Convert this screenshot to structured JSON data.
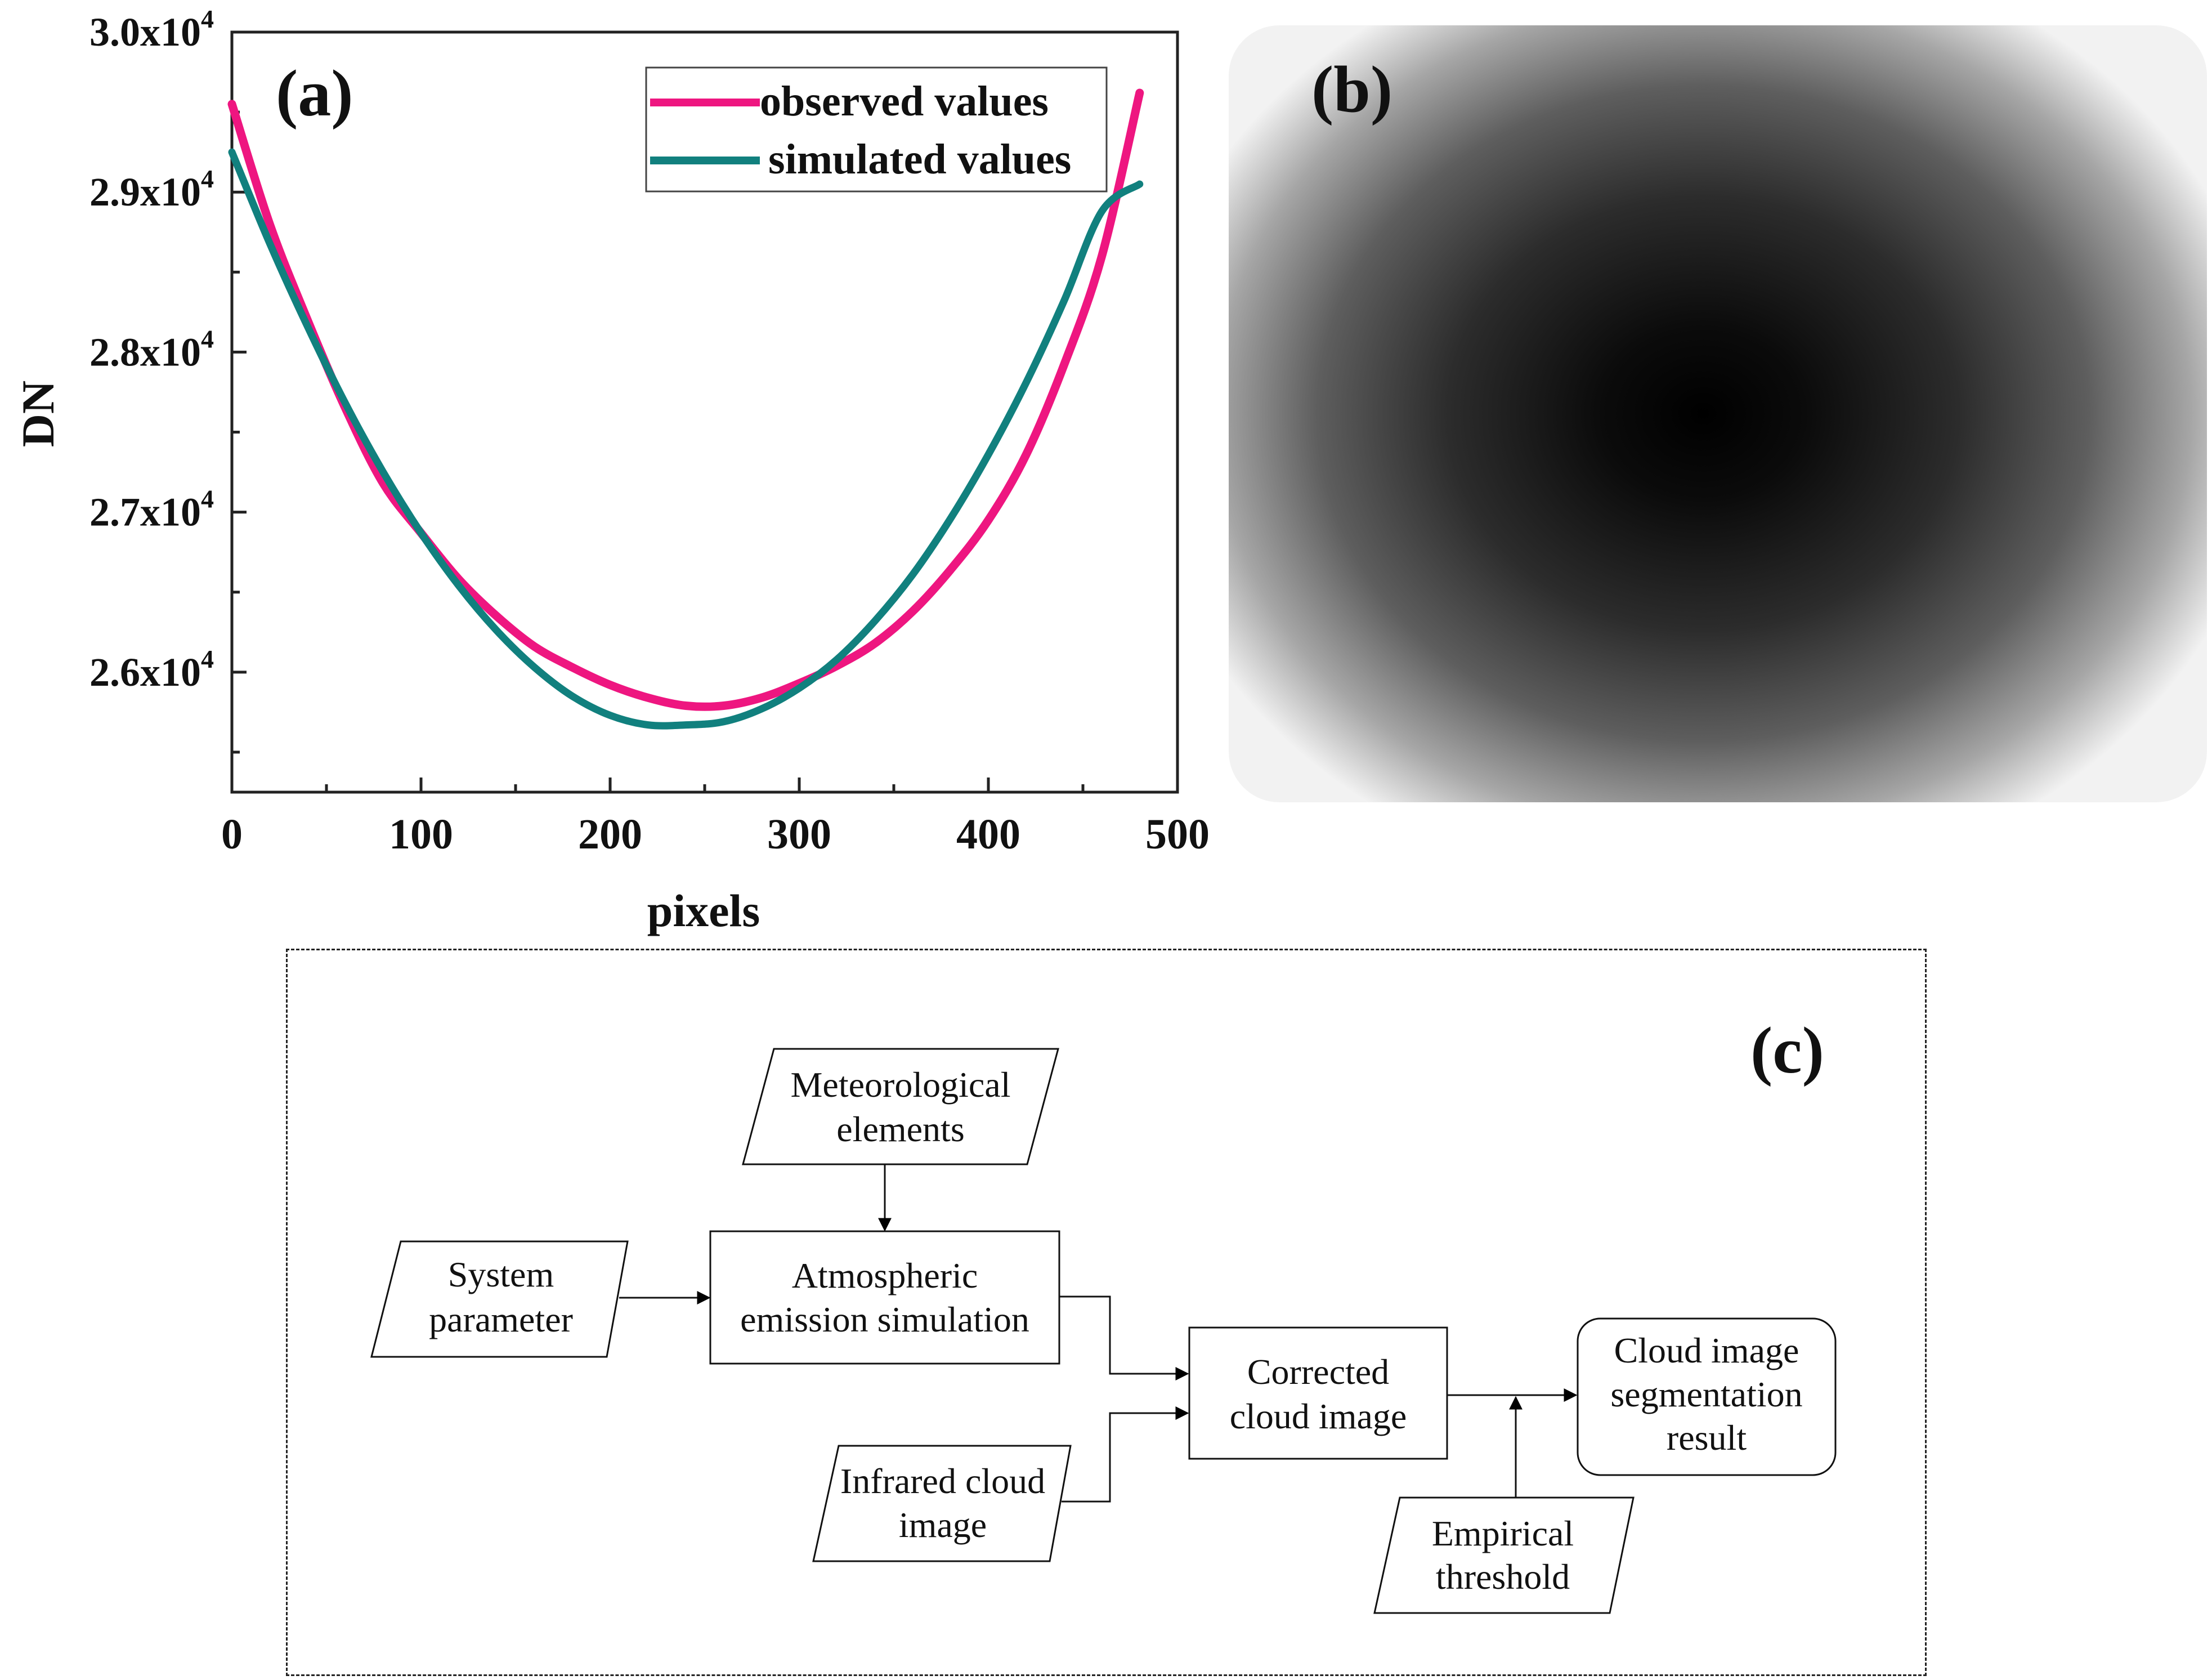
{
  "chart_data": {
    "type": "line",
    "panel_label": "(a)",
    "title": "",
    "xlabel": "pixels",
    "ylabel": "DN",
    "xlim": [
      0,
      500
    ],
    "ylim": [
      25250,
      30000
    ],
    "x_ticks": [
      0,
      100,
      200,
      300,
      400,
      500
    ],
    "x_tick_labels": [
      "0",
      "100",
      "200",
      "300",
      "400",
      "500"
    ],
    "y_ticks": [
      26000,
      27000,
      28000,
      29000,
      30000
    ],
    "y_tick_labels": [
      {
        "mantissa": "2.6x10",
        "exp": "4"
      },
      {
        "mantissa": "2.7x10",
        "exp": "4"
      },
      {
        "mantissa": "2.8x10",
        "exp": "4"
      },
      {
        "mantissa": "2.9x10",
        "exp": "4"
      },
      {
        "mantissa": "3.0x10",
        "exp": "4"
      }
    ],
    "legend_position": "top-right",
    "grid": false,
    "series": [
      {
        "name": "observed values",
        "color": "#ee1680",
        "x": [
          0,
          20,
          40,
          60,
          80,
          100,
          120,
          140,
          160,
          180,
          200,
          220,
          240,
          260,
          280,
          300,
          320,
          340,
          360,
          380,
          400,
          420,
          440,
          460,
          480
        ],
        "y": [
          29550,
          28800,
          28200,
          27650,
          27180,
          26870,
          26580,
          26350,
          26160,
          26030,
          25920,
          25840,
          25790,
          25790,
          25840,
          25930,
          26040,
          26180,
          26380,
          26640,
          26950,
          27360,
          27920,
          28600,
          29620
        ]
      },
      {
        "name": "simulated values",
        "color": "#11807e",
        "x": [
          0,
          20,
          40,
          60,
          80,
          100,
          120,
          140,
          160,
          180,
          200,
          220,
          240,
          260,
          280,
          300,
          320,
          340,
          360,
          380,
          400,
          420,
          440,
          460,
          480
        ],
        "y": [
          29250,
          28680,
          28160,
          27680,
          27250,
          26870,
          26540,
          26260,
          26030,
          25850,
          25730,
          25670,
          25670,
          25690,
          25770,
          25900,
          26080,
          26320,
          26610,
          26960,
          27360,
          27810,
          28320,
          28880,
          29050
        ]
      }
    ]
  },
  "panel_b": {
    "label": "(b)"
  },
  "panel_c": {
    "label": "(c)",
    "nodes": {
      "meteorological": [
        "Meteorological",
        "elements"
      ],
      "system": [
        "System",
        "parameter"
      ],
      "atmospheric": [
        "Atmospheric",
        "emission simulation"
      ],
      "infrared": [
        "Infrared cloud",
        "image"
      ],
      "corrected": [
        "Corrected",
        "cloud image"
      ],
      "threshold": [
        "Empirical",
        "threshold"
      ],
      "result": [
        "Cloud image",
        "segmentation",
        "result"
      ]
    }
  }
}
